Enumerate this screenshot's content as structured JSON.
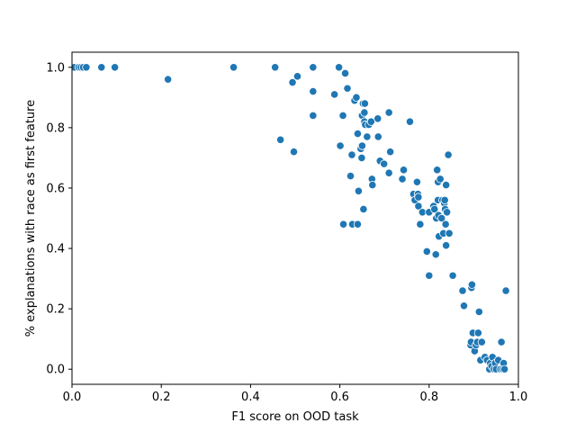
{
  "chart_data": {
    "type": "scatter",
    "title": "",
    "xlabel": "F1 score on OOD task",
    "ylabel": "% explanations with race as first feature",
    "xlim": [
      0,
      1.0
    ],
    "ylim": [
      -0.05,
      1.05
    ],
    "xticks": [
      0.0,
      0.2,
      0.4,
      0.6,
      0.8,
      1.0
    ],
    "xtick_labels": [
      "0.0",
      "0.2",
      "0.4",
      "0.6",
      "0.8",
      "1.0"
    ],
    "yticks": [
      0.0,
      0.2,
      0.4,
      0.6,
      0.8,
      1.0
    ],
    "ytick_labels": [
      "0.0",
      "0.2",
      "0.4",
      "0.6",
      "0.8",
      "1.0"
    ],
    "grid": false,
    "legend": "none",
    "color": "#1f77b4",
    "points": [
      [
        0.0,
        1.0
      ],
      [
        0.005,
        1.0
      ],
      [
        0.015,
        1.0
      ],
      [
        0.02,
        1.0
      ],
      [
        0.025,
        1.0
      ],
      [
        0.032,
        1.0
      ],
      [
        0.066,
        1.0
      ],
      [
        0.096,
        1.0
      ],
      [
        0.215,
        0.96
      ],
      [
        0.362,
        1.0
      ],
      [
        0.455,
        1.0
      ],
      [
        0.467,
        0.76
      ],
      [
        0.494,
        0.95
      ],
      [
        0.497,
        0.72
      ],
      [
        0.505,
        0.97
      ],
      [
        0.54,
        1.0
      ],
      [
        0.54,
        0.92
      ],
      [
        0.54,
        0.84
      ],
      [
        0.588,
        0.91
      ],
      [
        0.598,
        1.0
      ],
      [
        0.601,
        0.74
      ],
      [
        0.607,
        0.84
      ],
      [
        0.608,
        0.48
      ],
      [
        0.612,
        0.98
      ],
      [
        0.617,
        0.93
      ],
      [
        0.624,
        0.64
      ],
      [
        0.627,
        0.71
      ],
      [
        0.628,
        0.48
      ],
      [
        0.633,
        0.89
      ],
      [
        0.637,
        0.9
      ],
      [
        0.64,
        0.48
      ],
      [
        0.64,
        0.78
      ],
      [
        0.642,
        0.59
      ],
      [
        0.647,
        0.73
      ],
      [
        0.649,
        0.7
      ],
      [
        0.65,
        0.84
      ],
      [
        0.65,
        0.74
      ],
      [
        0.652,
        0.88
      ],
      [
        0.653,
        0.53
      ],
      [
        0.655,
        0.85
      ],
      [
        0.655,
        0.82
      ],
      [
        0.656,
        0.88
      ],
      [
        0.657,
        0.81
      ],
      [
        0.661,
        0.77
      ],
      [
        0.665,
        0.81
      ],
      [
        0.67,
        0.82
      ],
      [
        0.672,
        0.63
      ],
      [
        0.673,
        0.61
      ],
      [
        0.685,
        0.83
      ],
      [
        0.686,
        0.77
      ],
      [
        0.69,
        0.69
      ],
      [
        0.699,
        0.68
      ],
      [
        0.71,
        0.85
      ],
      [
        0.71,
        0.65
      ],
      [
        0.713,
        0.72
      ],
      [
        0.74,
        0.63
      ],
      [
        0.743,
        0.66
      ],
      [
        0.757,
        0.82
      ],
      [
        0.765,
        0.58
      ],
      [
        0.768,
        0.56
      ],
      [
        0.773,
        0.62
      ],
      [
        0.775,
        0.58
      ],
      [
        0.776,
        0.57
      ],
      [
        0.776,
        0.54
      ],
      [
        0.78,
        0.48
      ],
      [
        0.785,
        0.52
      ],
      [
        0.795,
        0.39
      ],
      [
        0.8,
        0.31
      ],
      [
        0.8,
        0.52
      ],
      [
        0.81,
        0.54
      ],
      [
        0.812,
        0.53
      ],
      [
        0.815,
        0.38
      ],
      [
        0.816,
        0.5
      ],
      [
        0.818,
        0.66
      ],
      [
        0.82,
        0.62
      ],
      [
        0.82,
        0.56
      ],
      [
        0.821,
        0.51
      ],
      [
        0.822,
        0.44
      ],
      [
        0.825,
        0.63
      ],
      [
        0.828,
        0.5
      ],
      [
        0.83,
        0.56
      ],
      [
        0.832,
        0.45
      ],
      [
        0.834,
        0.55
      ],
      [
        0.835,
        0.56
      ],
      [
        0.836,
        0.53
      ],
      [
        0.837,
        0.48
      ],
      [
        0.838,
        0.61
      ],
      [
        0.838,
        0.41
      ],
      [
        0.84,
        0.52
      ],
      [
        0.843,
        0.71
      ],
      [
        0.845,
        0.45
      ],
      [
        0.853,
        0.31
      ],
      [
        0.875,
        0.26
      ],
      [
        0.878,
        0.21
      ],
      [
        0.893,
        0.08
      ],
      [
        0.894,
        0.09
      ],
      [
        0.895,
        0.27
      ],
      [
        0.896,
        0.28
      ],
      [
        0.898,
        0.12
      ],
      [
        0.902,
        0.06
      ],
      [
        0.905,
        0.08
      ],
      [
        0.908,
        0.09
      ],
      [
        0.91,
        0.12
      ],
      [
        0.912,
        0.19
      ],
      [
        0.915,
        0.03
      ],
      [
        0.918,
        0.09
      ],
      [
        0.925,
        0.04
      ],
      [
        0.93,
        0.03
      ],
      [
        0.935,
        0.0
      ],
      [
        0.937,
        0.02
      ],
      [
        0.94,
        0.01
      ],
      [
        0.942,
        0.04
      ],
      [
        0.945,
        0.0
      ],
      [
        0.948,
        0.02
      ],
      [
        0.95,
        0.0
      ],
      [
        0.955,
        0.03
      ],
      [
        0.96,
        0.0
      ],
      [
        0.962,
        0.09
      ],
      [
        0.965,
        0.0
      ],
      [
        0.967,
        0.02
      ],
      [
        0.969,
        0.0
      ],
      [
        0.972,
        0.26
      ]
    ]
  }
}
